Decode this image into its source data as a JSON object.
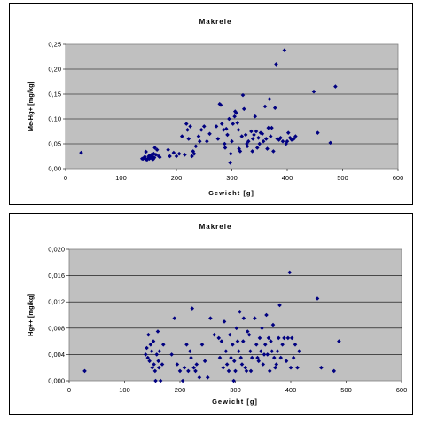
{
  "chart_data": [
    {
      "type": "scatter",
      "title": "Makrele",
      "xlabel": "Gewicht [g]",
      "ylabel": "Me-Hg+ [mg/kg]",
      "xlim": [
        0,
        600
      ],
      "ylim": [
        0,
        0.25
      ],
      "x_ticks": [
        "0",
        "100",
        "200",
        "300",
        "400",
        "500",
        "600"
      ],
      "y_ticks": [
        "0,00",
        "0,05",
        "0,10",
        "0,15",
        "0,20",
        "0,25"
      ],
      "grid": "horizontal",
      "plot_background": "#c0c0c0",
      "marker_color": "#000080",
      "marker": "diamond",
      "legend": "none",
      "points": [
        [
          28,
          0.032
        ],
        [
          138,
          0.02
        ],
        [
          140,
          0.02
        ],
        [
          142,
          0.022
        ],
        [
          143,
          0.024
        ],
        [
          145,
          0.019
        ],
        [
          145,
          0.034
        ],
        [
          147,
          0.018
        ],
        [
          149,
          0.021
        ],
        [
          150,
          0.025
        ],
        [
          151,
          0.02
        ],
        [
          152,
          0.026
        ],
        [
          153,
          0.022
        ],
        [
          155,
          0.028
        ],
        [
          156,
          0.02
        ],
        [
          157,
          0.024
        ],
        [
          158,
          0.019
        ],
        [
          159,
          0.03
        ],
        [
          160,
          0.022
        ],
        [
          161,
          0.042
        ],
        [
          163,
          0.028
        ],
        [
          165,
          0.038
        ],
        [
          168,
          0.025
        ],
        [
          170,
          0.023
        ],
        [
          185,
          0.038
        ],
        [
          188,
          0.025
        ],
        [
          195,
          0.032
        ],
        [
          200,
          0.025
        ],
        [
          205,
          0.03
        ],
        [
          210,
          0.065
        ],
        [
          215,
          0.028
        ],
        [
          218,
          0.09
        ],
        [
          220,
          0.078
        ],
        [
          222,
          0.06
        ],
        [
          225,
          0.085
        ],
        [
          228,
          0.025
        ],
        [
          230,
          0.035
        ],
        [
          232,
          0.03
        ],
        [
          235,
          0.045
        ],
        [
          240,
          0.065
        ],
        [
          242,
          0.055
        ],
        [
          245,
          0.078
        ],
        [
          250,
          0.085
        ],
        [
          255,
          0.055
        ],
        [
          260,
          0.07
        ],
        [
          272,
          0.085
        ],
        [
          275,
          0.06
        ],
        [
          278,
          0.13
        ],
        [
          280,
          0.128
        ],
        [
          282,
          0.09
        ],
        [
          285,
          0.078
        ],
        [
          287,
          0.05
        ],
        [
          288,
          0.042
        ],
        [
          290,
          0.08
        ],
        [
          292,
          0.068
        ],
        [
          295,
          0.1
        ],
        [
          297,
          0.012
        ],
        [
          298,
          0.03
        ],
        [
          300,
          0.055
        ],
        [
          302,
          0.09
        ],
        [
          305,
          0.105
        ],
        [
          306,
          0.115
        ],
        [
          308,
          0.112
        ],
        [
          310,
          0.092
        ],
        [
          312,
          0.078
        ],
        [
          313,
          0.04
        ],
        [
          315,
          0.035
        ],
        [
          318,
          0.065
        ],
        [
          320,
          0.148
        ],
        [
          322,
          0.12
        ],
        [
          325,
          0.068
        ],
        [
          327,
          0.05
        ],
        [
          328,
          0.045
        ],
        [
          330,
          0.055
        ],
        [
          335,
          0.075
        ],
        [
          337,
          0.035
        ],
        [
          338,
          0.06
        ],
        [
          340,
          0.068
        ],
        [
          342,
          0.105
        ],
        [
          344,
          0.075
        ],
        [
          346,
          0.042
        ],
        [
          348,
          0.062
        ],
        [
          350,
          0.05
        ],
        [
          352,
          0.072
        ],
        [
          355,
          0.07
        ],
        [
          357,
          0.055
        ],
        [
          360,
          0.125
        ],
        [
          362,
          0.06
        ],
        [
          364,
          0.04
        ],
        [
          366,
          0.082
        ],
        [
          368,
          0.14
        ],
        [
          370,
          0.065
        ],
        [
          372,
          0.082
        ],
        [
          375,
          0.035
        ],
        [
          378,
          0.122
        ],
        [
          380,
          0.21
        ],
        [
          382,
          0.06
        ],
        [
          385,
          0.058
        ],
        [
          388,
          0.062
        ],
        [
          392,
          0.055
        ],
        [
          395,
          0.238
        ],
        [
          398,
          0.05
        ],
        [
          400,
          0.055
        ],
        [
          402,
          0.072
        ],
        [
          405,
          0.062
        ],
        [
          408,
          0.058
        ],
        [
          412,
          0.06
        ],
        [
          415,
          0.065
        ],
        [
          448,
          0.155
        ],
        [
          455,
          0.072
        ],
        [
          478,
          0.052
        ],
        [
          487,
          0.165
        ]
      ]
    },
    {
      "type": "scatter",
      "title": "Makrele",
      "xlabel": "Gewicht [g]",
      "ylabel": "Hg++ [mg/kg]",
      "xlim": [
        0,
        600
      ],
      "ylim": [
        0,
        0.02
      ],
      "x_ticks": [
        "0",
        "100",
        "200",
        "300",
        "400",
        "500",
        "600"
      ],
      "y_ticks": [
        "0,000",
        "0,004",
        "0,008",
        "0,012",
        "0,016",
        "0,020"
      ],
      "grid": "horizontal",
      "plot_background": "#c0c0c0",
      "marker_color": "#000080",
      "marker": "diamond",
      "legend": "none",
      "points": [
        [
          28,
          0.0015
        ],
        [
          138,
          0.004
        ],
        [
          140,
          0.005
        ],
        [
          142,
          0.0035
        ],
        [
          143,
          0.007
        ],
        [
          145,
          0.003
        ],
        [
          147,
          0.0055
        ],
        [
          149,
          0.0045
        ],
        [
          150,
          0.002
        ],
        [
          152,
          0.006
        ],
        [
          153,
          0.0025
        ],
        [
          155,
          0.0015
        ],
        [
          156,
          0.0
        ],
        [
          158,
          0.004
        ],
        [
          160,
          0.0075
        ],
        [
          161,
          0.003
        ],
        [
          162,
          0.002
        ],
        [
          163,
          0.0045
        ],
        [
          165,
          0.0
        ],
        [
          168,
          0.0025
        ],
        [
          170,
          0.0055
        ],
        [
          185,
          0.004
        ],
        [
          190,
          0.0095
        ],
        [
          195,
          0.0025
        ],
        [
          200,
          0.0015
        ],
        [
          205,
          0.0
        ],
        [
          208,
          0.002
        ],
        [
          212,
          0.0055
        ],
        [
          215,
          0.0015
        ],
        [
          218,
          0.0045
        ],
        [
          220,
          0.0035
        ],
        [
          222,
          0.011
        ],
        [
          225,
          0.002
        ],
        [
          228,
          0.0015
        ],
        [
          230,
          0.0025
        ],
        [
          235,
          0.0005
        ],
        [
          240,
          0.0055
        ],
        [
          245,
          0.003
        ],
        [
          250,
          0.0005
        ],
        [
          255,
          0.0095
        ],
        [
          262,
          0.007
        ],
        [
          270,
          0.0065
        ],
        [
          272,
          0.0035
        ],
        [
          275,
          0.006
        ],
        [
          278,
          0.002
        ],
        [
          280,
          0.009
        ],
        [
          283,
          0.0045
        ],
        [
          285,
          0.0025
        ],
        [
          288,
          0.0015
        ],
        [
          290,
          0.007
        ],
        [
          292,
          0.0035
        ],
        [
          295,
          0.0055
        ],
        [
          297,
          0.0
        ],
        [
          298,
          0.003
        ],
        [
          300,
          0.0015
        ],
        [
          302,
          0.008
        ],
        [
          304,
          0.006
        ],
        [
          306,
          0.0045
        ],
        [
          308,
          0.0105
        ],
        [
          310,
          0.0035
        ],
        [
          312,
          0.0025
        ],
        [
          314,
          0.006
        ],
        [
          315,
          0.0095
        ],
        [
          318,
          0.002
        ],
        [
          320,
          0.0015
        ],
        [
          322,
          0.0075
        ],
        [
          325,
          0.007
        ],
        [
          327,
          0.0045
        ],
        [
          328,
          0.0015
        ],
        [
          330,
          0.0035
        ],
        [
          335,
          0.0095
        ],
        [
          338,
          0.0055
        ],
        [
          340,
          0.0035
        ],
        [
          342,
          0.003
        ],
        [
          344,
          0.0065
        ],
        [
          346,
          0.0045
        ],
        [
          348,
          0.008
        ],
        [
          350,
          0.0025
        ],
        [
          352,
          0.004
        ],
        [
          354,
          0.0055
        ],
        [
          356,
          0.01
        ],
        [
          358,
          0.004
        ],
        [
          360,
          0.0065
        ],
        [
          362,
          0.0015
        ],
        [
          364,
          0.006
        ],
        [
          366,
          0.0045
        ],
        [
          368,
          0.0085
        ],
        [
          370,
          0.0035
        ],
        [
          372,
          0.002
        ],
        [
          374,
          0.0025
        ],
        [
          376,
          0.0045
        ],
        [
          378,
          0.0065
        ],
        [
          380,
          0.0115
        ],
        [
          382,
          0.0035
        ],
        [
          385,
          0.0055
        ],
        [
          388,
          0.0065
        ],
        [
          392,
          0.003
        ],
        [
          395,
          0.0065
        ],
        [
          398,
          0.0165
        ],
        [
          400,
          0.002
        ],
        [
          402,
          0.0065
        ],
        [
          405,
          0.0035
        ],
        [
          408,
          0.0055
        ],
        [
          412,
          0.002
        ],
        [
          415,
          0.0045
        ],
        [
          448,
          0.0125
        ],
        [
          455,
          0.002
        ],
        [
          478,
          0.0015
        ],
        [
          487,
          0.006
        ]
      ]
    }
  ]
}
